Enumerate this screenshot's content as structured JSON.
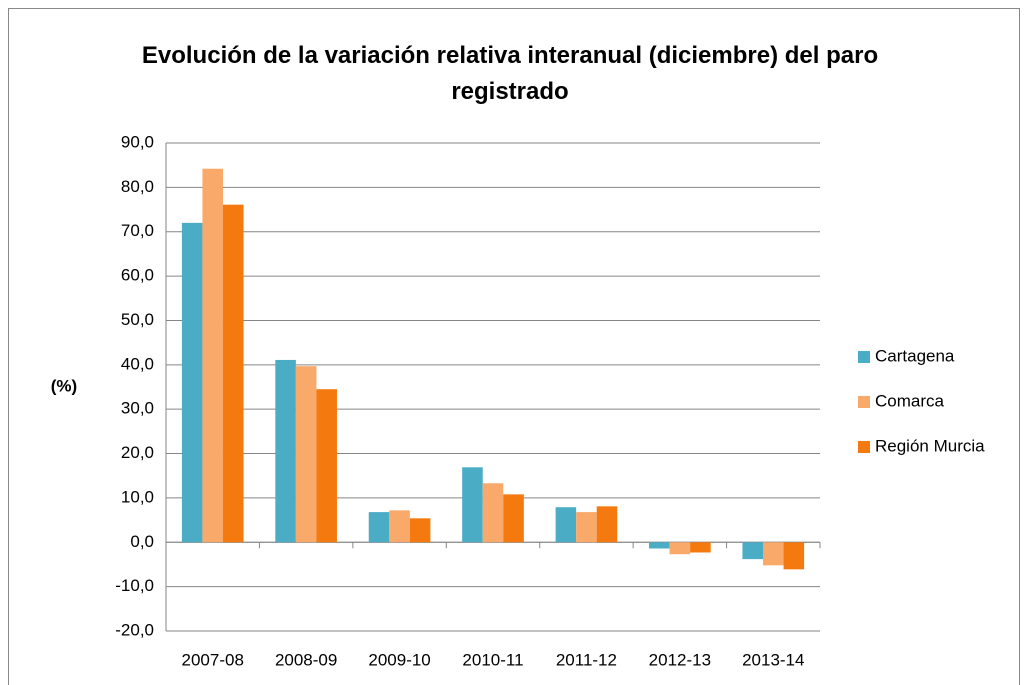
{
  "chart_data": {
    "type": "bar",
    "title": "Evolución de la variación relativa interanual (diciembre) del paro registrado",
    "y_label": "(%)",
    "categories": [
      "2007-08",
      "2008-09",
      "2009-10",
      "2010-11",
      "2011-12",
      "2012-13",
      "2013-14"
    ],
    "series": [
      {
        "name": "Cartagena",
        "color": "#4bacc6",
        "values": [
          72.0,
          41.1,
          6.8,
          16.9,
          7.9,
          -1.4,
          -3.8
        ]
      },
      {
        "name": "Comarca",
        "color": "#f9a96a",
        "values": [
          84.2,
          39.7,
          7.2,
          13.3,
          6.8,
          -2.7,
          -5.2
        ]
      },
      {
        "name": "Región Murcia",
        "color": "#f47a10",
        "values": [
          76.1,
          34.5,
          5.4,
          10.8,
          8.1,
          -2.3,
          -6.1
        ]
      }
    ],
    "ylim": [
      -20,
      90
    ],
    "yticks": [
      {
        "value": -20,
        "label": "-20,0"
      },
      {
        "value": -10,
        "label": "-10,0"
      },
      {
        "value": 0,
        "label": "0,0"
      },
      {
        "value": 10,
        "label": "10,0"
      },
      {
        "value": 20,
        "label": "20,0"
      },
      {
        "value": 30,
        "label": "30,0"
      },
      {
        "value": 40,
        "label": "40,0"
      },
      {
        "value": 50,
        "label": "50,0"
      },
      {
        "value": 60,
        "label": "60,0"
      },
      {
        "value": 70,
        "label": "70,0"
      },
      {
        "value": 80,
        "label": "80,0"
      },
      {
        "value": 90,
        "label": "90,0"
      }
    ],
    "grid": true,
    "legend": "right"
  }
}
